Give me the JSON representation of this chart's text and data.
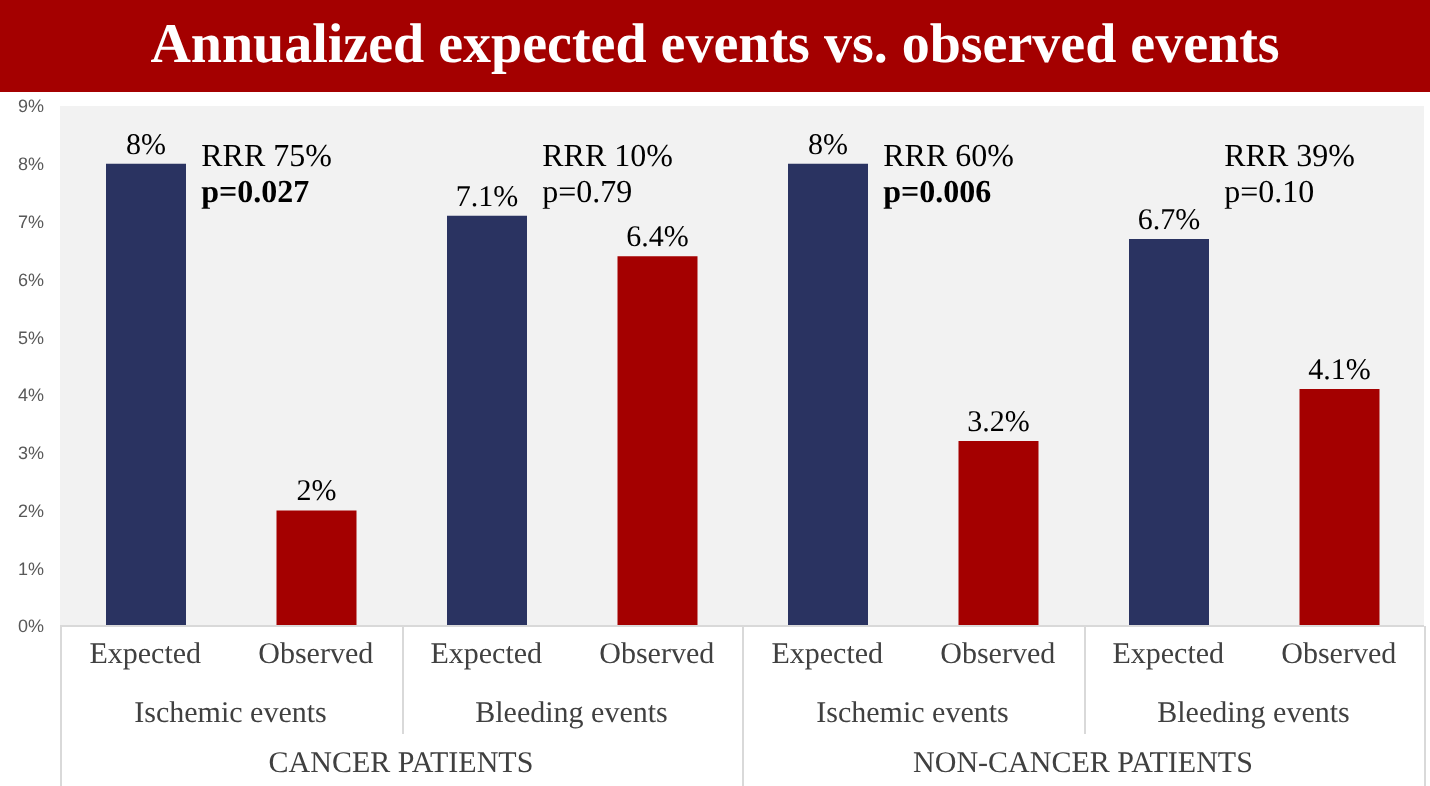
{
  "chart_data": {
    "type": "bar",
    "title": "Annualized expected events vs. observed events",
    "categories": [
      "Expected",
      "Observed",
      "Expected",
      "Observed",
      "Expected",
      "Observed",
      "Expected",
      "Observed"
    ],
    "values": [
      8,
      2,
      7.1,
      6.4,
      8,
      3.2,
      6.7,
      4.1
    ],
    "colors": [
      "#2a3361",
      "#a40000",
      "#2a3361",
      "#a40000",
      "#2a3361",
      "#a40000",
      "#2a3361",
      "#a40000"
    ],
    "value_labels": [
      "8%",
      "2%",
      "7.1%",
      "6.4%",
      "8%",
      "3.2%",
      "6.7%",
      "4.1%"
    ],
    "ylim": [
      0,
      9
    ],
    "yticks": [
      {
        "value": 0,
        "label": "0%"
      },
      {
        "value": 1,
        "label": "1%"
      },
      {
        "value": 2,
        "label": "2%"
      },
      {
        "value": 3,
        "label": "3%"
      },
      {
        "value": 4,
        "label": "4%"
      },
      {
        "value": 5,
        "label": "5%"
      },
      {
        "value": 6,
        "label": "6%"
      },
      {
        "value": 7,
        "label": "7%"
      },
      {
        "value": 8,
        "label": "8%"
      },
      {
        "value": 9,
        "label": "9%"
      }
    ],
    "annotations": [
      "RRR 75%",
      "p=0.027",
      "RRR 10%",
      "p=0.79",
      "RRR 60%",
      "p=0.006",
      "RRR 39%",
      "p=0.10",
      "Ischemic events",
      "Bleeding events",
      "Ischemic events",
      "Bleeding events",
      "CANCER PATIENTS",
      "NON-CANCER PATIENTS"
    ]
  }
}
